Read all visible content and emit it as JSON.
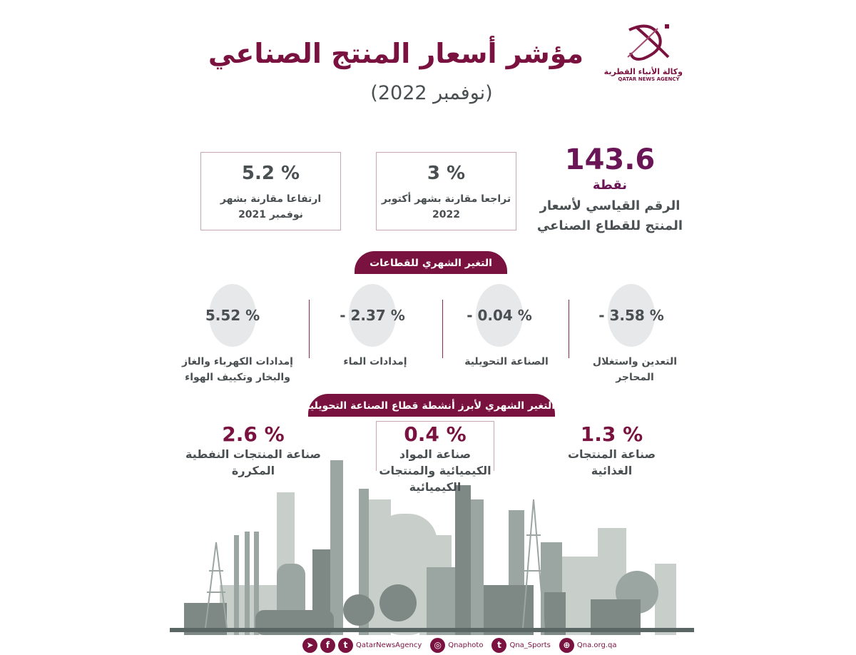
{
  "header": {
    "title": "مؤشر أسعار المنتج الصناعي",
    "subtitle": "(نوفمبر 2022)"
  },
  "logo": {
    "arabic": "وكالة الأنباء القطرية",
    "english": "QATAR NEWS AGENCY"
  },
  "index": {
    "value": "143.6",
    "unit": "نقطة",
    "label_line1": "الرقم القياسي لأسعار",
    "label_line2": "المنتج للقطاع الصناعي"
  },
  "stats": [
    {
      "value": "3 %",
      "line1": "تراجعا مقارنة بشهر أكتوبر",
      "line2": "2022"
    },
    {
      "value": "5.2 %",
      "line1": "ارتفاعا مقارنة بشهر",
      "line2": "نوفمبر 2021"
    }
  ],
  "sectors_banner": "التغير الشهري للقطاعات",
  "sectors": [
    {
      "value": "- 3.58 %",
      "line1": "التعدين واستغلال",
      "line2": "المحاجر"
    },
    {
      "value": "- 0.04 %",
      "line1": "الصناعة التحويلية",
      "line2": ""
    },
    {
      "value": "- 2.37 %",
      "line1": "إمدادات الماء",
      "line2": ""
    },
    {
      "value": "5.52 %",
      "line1": "إمدادات الكهرباء والغاز",
      "line2": "والبخار وتكييف الهواء"
    }
  ],
  "activities_banner": "التغير الشهري لأبرز أنشطة قطاع الصناعة التحويلية",
  "activities": [
    {
      "value": "1.3 %",
      "line1": "صناعة المنتجات",
      "line2": "الغذائية",
      "line3": ""
    },
    {
      "value": "0.4 %",
      "line1": "صناعة المواد",
      "line2": "الكيميائية والمنتجات",
      "line3": "الكيميائية"
    },
    {
      "value": "2.6 %",
      "line1": "صناعة المنتجات النفطية",
      "line2": "المكررة",
      "line3": ""
    }
  ],
  "footer": {
    "handle1": "QatarNewsAgency",
    "handle2": "Qnaphoto",
    "handle3": "Qna_Sports",
    "website": "Qna.org.qa"
  },
  "colors": {
    "accent": "#7a1240",
    "index": "#6a1656",
    "text": "#4a4f52"
  }
}
